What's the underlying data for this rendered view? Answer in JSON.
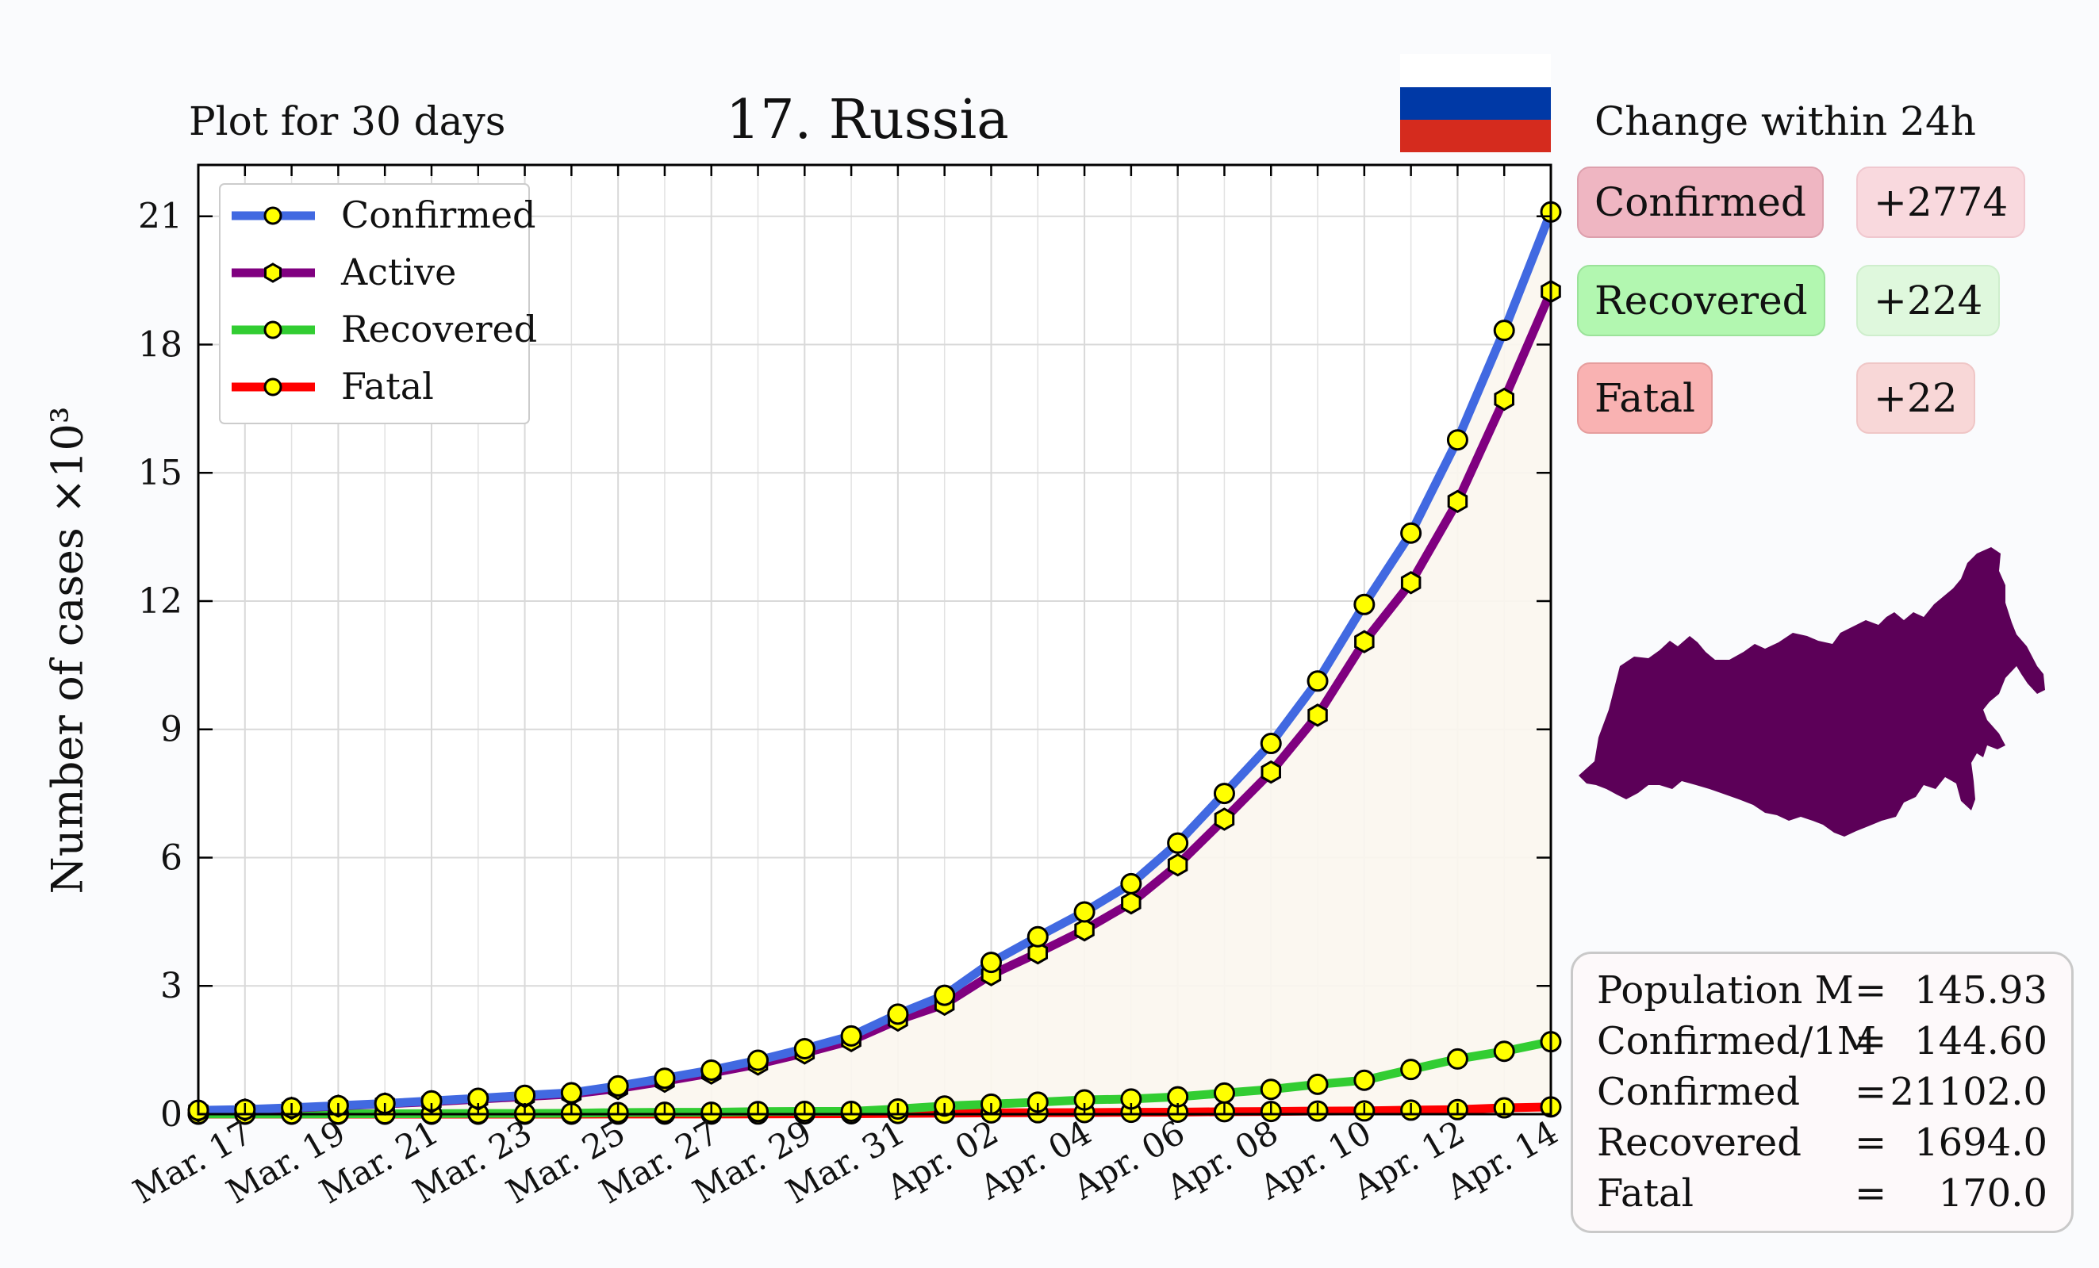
{
  "header": {
    "subtitle": "Plot for 30 days",
    "title": "17. Russia",
    "change_title": "Change within 24h"
  },
  "flag_colors": [
    "#ffffff",
    "#0039a6",
    "#d52b1e"
  ],
  "changes": {
    "confirmed_label": "Confirmed",
    "confirmed_delta": "+2774",
    "recovered_label": "Recovered",
    "recovered_delta": "+224",
    "fatal_label": "Fatal",
    "fatal_delta": "+22"
  },
  "map": {
    "icon": "russia-map-icon",
    "color": "#5c0058"
  },
  "stats": [
    {
      "key": "Population M",
      "eq": "=",
      "value": "145.93"
    },
    {
      "key": "Confirmed/1M",
      "eq": "=",
      "value": "144.60"
    },
    {
      "key": "Confirmed",
      "eq": "=",
      "value": "21102.0"
    },
    {
      "key": "Recovered",
      "eq": "=",
      "value": "1694.0"
    },
    {
      "key": "Fatal",
      "eq": "=",
      "value": "170.0"
    }
  ],
  "chart_data": {
    "type": "line",
    "ylabel": "Number of cases ×10³",
    "ylim": [
      0,
      22.2
    ],
    "yticks": [
      "0",
      "3",
      "6",
      "9",
      "12",
      "15",
      "18",
      "21"
    ],
    "x_tick_labels": [
      "Mar. 17",
      "Mar. 19",
      "Mar. 21",
      "Mar. 23",
      "Mar. 25",
      "Mar. 27",
      "Mar. 29",
      "Mar. 31",
      "Apr. 02",
      "Apr. 04",
      "Apr. 06",
      "Apr. 08",
      "Apr. 10",
      "Apr. 12",
      "Apr. 14"
    ],
    "x": [
      "Mar. 16",
      "Mar. 17",
      "Mar. 18",
      "Mar. 19",
      "Mar. 20",
      "Mar. 21",
      "Mar. 22",
      "Mar. 23",
      "Mar. 24",
      "Mar. 25",
      "Mar. 26",
      "Mar. 27",
      "Mar. 28",
      "Mar. 29",
      "Mar. 30",
      "Mar. 31",
      "Apr. 01",
      "Apr. 02",
      "Apr. 03",
      "Apr. 04",
      "Apr. 05",
      "Apr. 06",
      "Apr. 07",
      "Apr. 08",
      "Apr. 09",
      "Apr. 10",
      "Apr. 11",
      "Apr. 12",
      "Apr. 13",
      "Apr. 14"
    ],
    "grid": true,
    "legend_position": "top-left",
    "series": [
      {
        "name": "Confirmed",
        "color": "#4169e1",
        "marker": "circle",
        "values": [
          0.09,
          0.11,
          0.15,
          0.2,
          0.25,
          0.31,
          0.37,
          0.44,
          0.5,
          0.66,
          0.84,
          1.03,
          1.26,
          1.53,
          1.83,
          2.34,
          2.78,
          3.55,
          4.15,
          4.73,
          5.39,
          6.34,
          7.5,
          8.67,
          10.13,
          11.92,
          13.59,
          15.77,
          18.33,
          21.1
        ]
      },
      {
        "name": "Active",
        "color": "#800080",
        "marker": "hexagon",
        "values": [
          0.08,
          0.1,
          0.14,
          0.19,
          0.24,
          0.29,
          0.35,
          0.41,
          0.47,
          0.6,
          0.77,
          0.96,
          1.17,
          1.43,
          1.72,
          2.2,
          2.57,
          3.26,
          3.77,
          4.31,
          4.94,
          5.83,
          6.9,
          8.0,
          9.33,
          11.05,
          12.43,
          14.33,
          16.72,
          19.24
        ]
      },
      {
        "name": "Recovered",
        "color": "#32cd32",
        "marker": "circle",
        "values": [
          0.005,
          0.005,
          0.005,
          0.008,
          0.009,
          0.012,
          0.016,
          0.016,
          0.022,
          0.038,
          0.043,
          0.045,
          0.061,
          0.064,
          0.066,
          0.121,
          0.19,
          0.235,
          0.281,
          0.333,
          0.355,
          0.406,
          0.494,
          0.58,
          0.698,
          0.793,
          1.045,
          1.291,
          1.47,
          1.694
        ]
      },
      {
        "name": "Fatal",
        "color": "#ff0000",
        "marker": "circle",
        "values": [
          0,
          0,
          0,
          0.001,
          0.001,
          0.001,
          0.001,
          0.001,
          0.001,
          0.002,
          0.003,
          0.003,
          0.004,
          0.008,
          0.009,
          0.017,
          0.024,
          0.03,
          0.034,
          0.038,
          0.045,
          0.047,
          0.058,
          0.063,
          0.073,
          0.076,
          0.094,
          0.106,
          0.148,
          0.17
        ]
      }
    ]
  }
}
